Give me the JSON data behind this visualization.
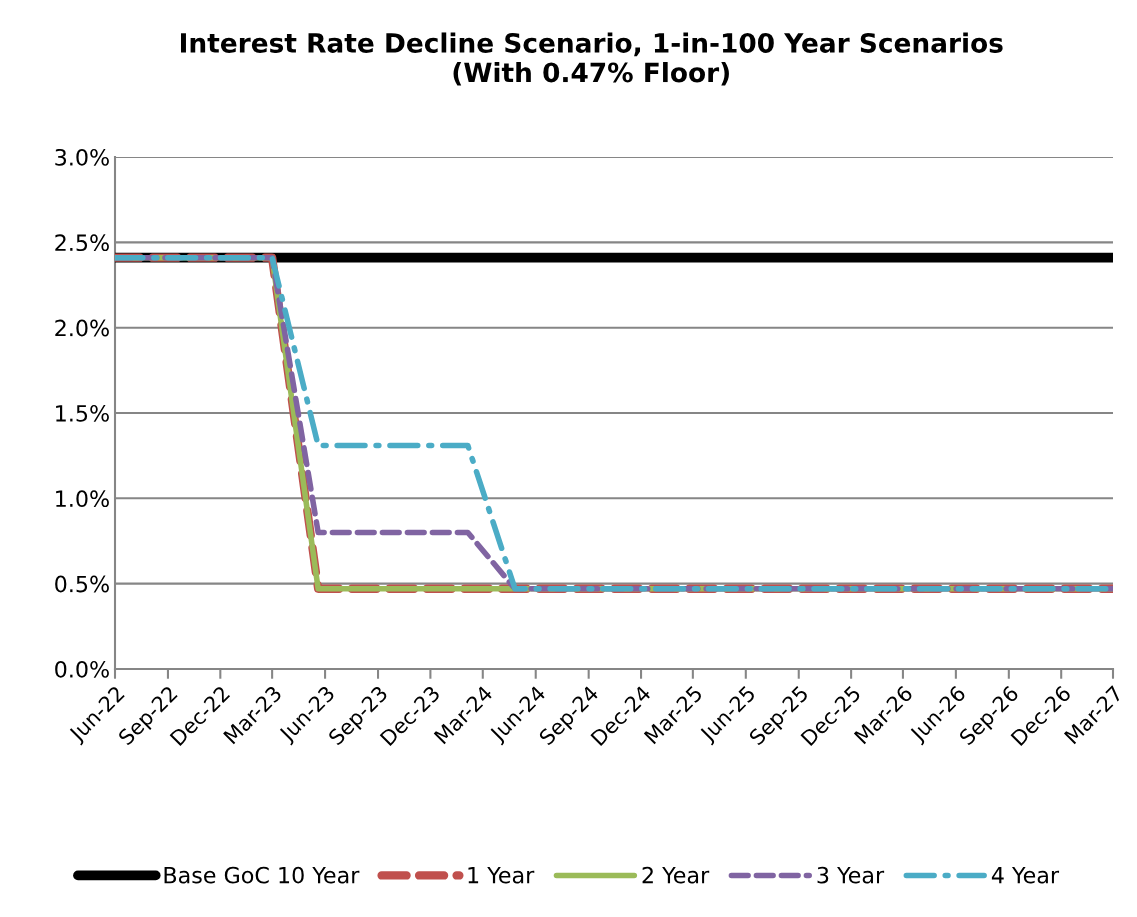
{
  "chart_data": {
    "type": "line",
    "title": "Interest Rate Decline Scenario, 1-in-100 Year Scenarios\n(With 0.47% Floor)",
    "series": [
      {
        "name": "Base GoC 10 Year",
        "color": "#000000",
        "line_style": "solid",
        "x": [
          "2022-06-01",
          "2027-03-01"
        ],
        "values": [
          2.41,
          2.41
        ]
      },
      {
        "name": "1 Year",
        "color": "#c0504d",
        "line_style": "dashed",
        "x": [
          "2022-06-01",
          "2023-03-01",
          "2023-05-20",
          "2027-03-01"
        ],
        "values": [
          2.41,
          2.41,
          0.47,
          0.47
        ]
      },
      {
        "name": "2 Year",
        "color": "#9bbb59",
        "line_style": "solid",
        "x": [
          "2022-06-01",
          "2023-03-01",
          "2023-05-20",
          "2027-03-01"
        ],
        "values": [
          2.41,
          2.41,
          0.47,
          0.47
        ]
      },
      {
        "name": "3 Year",
        "color": "#8064a2",
        "line_style": "dashed",
        "x": [
          "2022-06-01",
          "2023-03-01",
          "2023-05-20",
          "2024-02-04",
          "2024-04-26",
          "2027-03-01"
        ],
        "values": [
          2.41,
          2.41,
          0.8,
          0.8,
          0.47,
          0.47
        ]
      },
      {
        "name": "4 Year",
        "color": "#4bacc6",
        "line_style": "dashdot",
        "x": [
          "2022-06-01",
          "2023-03-01",
          "2023-05-20",
          "2024-02-04",
          "2024-04-26",
          "2027-03-01"
        ],
        "values": [
          2.41,
          2.41,
          1.31,
          1.31,
          0.47,
          0.47
        ]
      }
    ],
    "xlim": [
      "2022-06-01",
      "2027-03-01"
    ],
    "xticks": [
      {
        "value": "2022-06-01",
        "label": "Jun-22"
      },
      {
        "value": "2022-09-01",
        "label": "Sep-22"
      },
      {
        "value": "2022-12-01",
        "label": "Dec-22"
      },
      {
        "value": "2023-03-01",
        "label": "Mar-23"
      },
      {
        "value": "2023-06-01",
        "label": "Jun-23"
      },
      {
        "value": "2023-09-01",
        "label": "Sep-23"
      },
      {
        "value": "2023-12-01",
        "label": "Dec-23"
      },
      {
        "value": "2024-03-01",
        "label": "Mar-24"
      },
      {
        "value": "2024-06-01",
        "label": "Jun-24"
      },
      {
        "value": "2024-09-01",
        "label": "Sep-24"
      },
      {
        "value": "2024-12-01",
        "label": "Dec-24"
      },
      {
        "value": "2025-03-01",
        "label": "Mar-25"
      },
      {
        "value": "2025-06-01",
        "label": "Jun-25"
      },
      {
        "value": "2025-09-01",
        "label": "Sep-25"
      },
      {
        "value": "2025-12-01",
        "label": "Dec-25"
      },
      {
        "value": "2026-03-01",
        "label": "Mar-26"
      },
      {
        "value": "2026-06-01",
        "label": "Jun-26"
      },
      {
        "value": "2026-09-01",
        "label": "Sep-26"
      },
      {
        "value": "2026-12-01",
        "label": "Dec-26"
      },
      {
        "value": "2027-03-01",
        "label": "Mar-27"
      }
    ],
    "ylim": [
      0,
      3
    ],
    "yticks": [
      {
        "value": 0,
        "label": "0.0%"
      },
      {
        "value": 0.5,
        "label": "0.5%"
      },
      {
        "value": 1,
        "label": "1.0%"
      },
      {
        "value": 1.5,
        "label": "1.5%"
      },
      {
        "value": 2,
        "label": "2.0%"
      },
      {
        "value": 2.5,
        "label": "2.5%"
      },
      {
        "value": 3,
        "label": "3.0%"
      }
    ],
    "grid": "y",
    "legend": "bottom",
    "marker": "none"
  }
}
